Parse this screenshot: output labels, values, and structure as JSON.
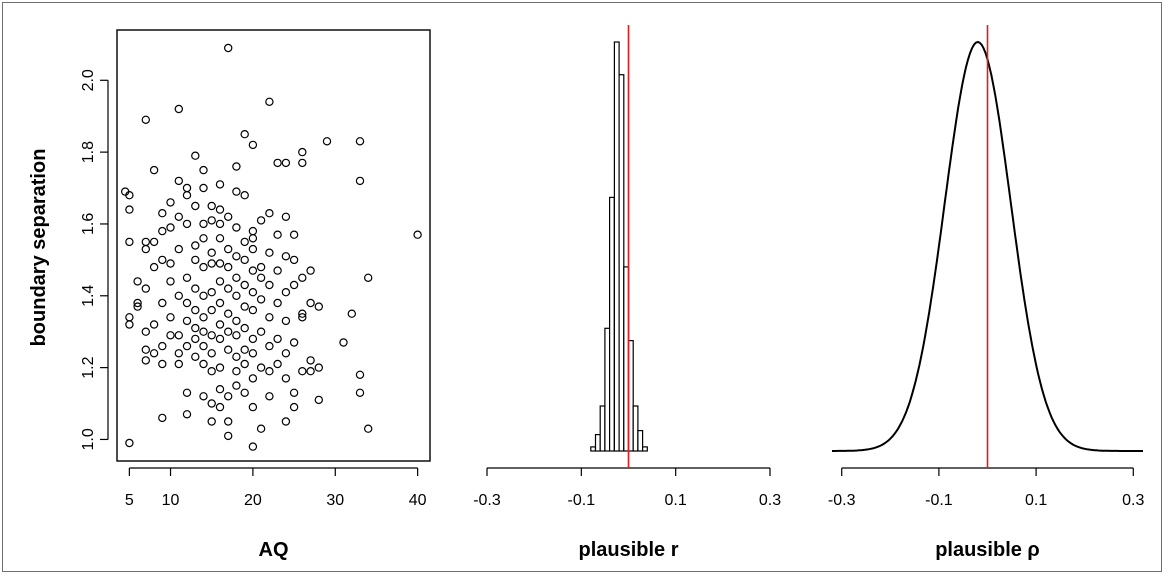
{
  "colors": {
    "ink": "#000000",
    "reference_line": "#e41a1c",
    "frame": "#6f6f6f"
  },
  "chart_data": [
    {
      "type": "scatter",
      "xlabel": "AQ",
      "ylabel": "boundary separation",
      "xlim": [
        3.5,
        41.5
      ],
      "ylim": [
        0.94,
        2.14
      ],
      "xticks": [
        5,
        10,
        20,
        30,
        40
      ],
      "yticks": [
        1.0,
        1.2,
        1.4,
        1.6,
        1.8,
        2.0
      ],
      "xtick_labels": [
        "5",
        "10",
        "20",
        "30",
        "40"
      ],
      "ytick_labels": [
        "1.0",
        "1.2",
        "1.4",
        "1.6",
        "1.8",
        "2.0"
      ],
      "marker": "open-circle",
      "points": [
        [
          17,
          2.09
        ],
        [
          11,
          1.92
        ],
        [
          22,
          1.94
        ],
        [
          7,
          1.89
        ],
        [
          19,
          1.85
        ],
        [
          29,
          1.83
        ],
        [
          33,
          1.83
        ],
        [
          20,
          1.82
        ],
        [
          13,
          1.79
        ],
        [
          26,
          1.8
        ],
        [
          8,
          1.75
        ],
        [
          14,
          1.75
        ],
        [
          18,
          1.76
        ],
        [
          23,
          1.77
        ],
        [
          24,
          1.77
        ],
        [
          26,
          1.77
        ],
        [
          11,
          1.72
        ],
        [
          12,
          1.7
        ],
        [
          14,
          1.7
        ],
        [
          16,
          1.71
        ],
        [
          33,
          1.72
        ],
        [
          4.5,
          1.69
        ],
        [
          5,
          1.68
        ],
        [
          18,
          1.69
        ],
        [
          19,
          1.68
        ],
        [
          12,
          1.68
        ],
        [
          10,
          1.66
        ],
        [
          13,
          1.65
        ],
        [
          15,
          1.65
        ],
        [
          5,
          1.64
        ],
        [
          9,
          1.63
        ],
        [
          16,
          1.64
        ],
        [
          17,
          1.62
        ],
        [
          22,
          1.63
        ],
        [
          11,
          1.62
        ],
        [
          15,
          1.61
        ],
        [
          16,
          1.6
        ],
        [
          21,
          1.61
        ],
        [
          24,
          1.62
        ],
        [
          10,
          1.59
        ],
        [
          12,
          1.6
        ],
        [
          14,
          1.6
        ],
        [
          18,
          1.59
        ],
        [
          20,
          1.58
        ],
        [
          9,
          1.58
        ],
        [
          23,
          1.57
        ],
        [
          25,
          1.57
        ],
        [
          40,
          1.57
        ],
        [
          5,
          1.55
        ],
        [
          7,
          1.55
        ],
        [
          8,
          1.55
        ],
        [
          14,
          1.56
        ],
        [
          16,
          1.56
        ],
        [
          19,
          1.55
        ],
        [
          20,
          1.56
        ],
        [
          13,
          1.54
        ],
        [
          17,
          1.53
        ],
        [
          20,
          1.53
        ],
        [
          22,
          1.52
        ],
        [
          7,
          1.53
        ],
        [
          11,
          1.53
        ],
        [
          15,
          1.52
        ],
        [
          18,
          1.51
        ],
        [
          24,
          1.51
        ],
        [
          9,
          1.5
        ],
        [
          10,
          1.49
        ],
        [
          13,
          1.5
        ],
        [
          16,
          1.49
        ],
        [
          19,
          1.5
        ],
        [
          21,
          1.48
        ],
        [
          25,
          1.5
        ],
        [
          8,
          1.48
        ],
        [
          14,
          1.48
        ],
        [
          15,
          1.49
        ],
        [
          17,
          1.48
        ],
        [
          20,
          1.47
        ],
        [
          23,
          1.47
        ],
        [
          27,
          1.47
        ],
        [
          12,
          1.45
        ],
        [
          18,
          1.45
        ],
        [
          21,
          1.45
        ],
        [
          26,
          1.45
        ],
        [
          34,
          1.45
        ],
        [
          6,
          1.44
        ],
        [
          10,
          1.44
        ],
        [
          16,
          1.44
        ],
        [
          19,
          1.43
        ],
        [
          22,
          1.43
        ],
        [
          25,
          1.43
        ],
        [
          7,
          1.42
        ],
        [
          13,
          1.42
        ],
        [
          15,
          1.41
        ],
        [
          17,
          1.42
        ],
        [
          20,
          1.41
        ],
        [
          24,
          1.41
        ],
        [
          11,
          1.4
        ],
        [
          14,
          1.4
        ],
        [
          18,
          1.4
        ],
        [
          21,
          1.39
        ],
        [
          6,
          1.38
        ],
        [
          9,
          1.38
        ],
        [
          12,
          1.38
        ],
        [
          16,
          1.38
        ],
        [
          19,
          1.37
        ],
        [
          23,
          1.38
        ],
        [
          27,
          1.38
        ],
        [
          28,
          1.37
        ],
        [
          6,
          1.37
        ],
        [
          13,
          1.36
        ],
        [
          15,
          1.36
        ],
        [
          17,
          1.35
        ],
        [
          20,
          1.36
        ],
        [
          26,
          1.35
        ],
        [
          32,
          1.35
        ],
        [
          5,
          1.34
        ],
        [
          10,
          1.34
        ],
        [
          14,
          1.34
        ],
        [
          18,
          1.33
        ],
        [
          22,
          1.34
        ],
        [
          24,
          1.33
        ],
        [
          26,
          1.34
        ],
        [
          5,
          1.32
        ],
        [
          8,
          1.32
        ],
        [
          12,
          1.33
        ],
        [
          13,
          1.31
        ],
        [
          16,
          1.32
        ],
        [
          19,
          1.31
        ],
        [
          21,
          1.3
        ],
        [
          14,
          1.3
        ],
        [
          15,
          1.29
        ],
        [
          17,
          1.3
        ],
        [
          18,
          1.29
        ],
        [
          7,
          1.3
        ],
        [
          11,
          1.29
        ],
        [
          10,
          1.29
        ],
        [
          13,
          1.28
        ],
        [
          16,
          1.28
        ],
        [
          20,
          1.28
        ],
        [
          23,
          1.28
        ],
        [
          25,
          1.27
        ],
        [
          31,
          1.27
        ],
        [
          9,
          1.26
        ],
        [
          12,
          1.26
        ],
        [
          14,
          1.26
        ],
        [
          17,
          1.25
        ],
        [
          19,
          1.25
        ],
        [
          22,
          1.26
        ],
        [
          7,
          1.25
        ],
        [
          8,
          1.24
        ],
        [
          11,
          1.24
        ],
        [
          13,
          1.23
        ],
        [
          15,
          1.24
        ],
        [
          18,
          1.23
        ],
        [
          20,
          1.24
        ],
        [
          24,
          1.24
        ],
        [
          27,
          1.22
        ],
        [
          7,
          1.22
        ],
        [
          9,
          1.21
        ],
        [
          11,
          1.21
        ],
        [
          14,
          1.21
        ],
        [
          16,
          1.2
        ],
        [
          19,
          1.21
        ],
        [
          21,
          1.2
        ],
        [
          23,
          1.21
        ],
        [
          28,
          1.2
        ],
        [
          15,
          1.19
        ],
        [
          18,
          1.19
        ],
        [
          22,
          1.19
        ],
        [
          26,
          1.19
        ],
        [
          27,
          1.19
        ],
        [
          33,
          1.18
        ],
        [
          20,
          1.17
        ],
        [
          24,
          1.17
        ],
        [
          18,
          1.15
        ],
        [
          16,
          1.14
        ],
        [
          12,
          1.13
        ],
        [
          19,
          1.13
        ],
        [
          25,
          1.13
        ],
        [
          33,
          1.13
        ],
        [
          14,
          1.12
        ],
        [
          17,
          1.12
        ],
        [
          22,
          1.12
        ],
        [
          28,
          1.11
        ],
        [
          15,
          1.1
        ],
        [
          20,
          1.09
        ],
        [
          25,
          1.09
        ],
        [
          12,
          1.07
        ],
        [
          16,
          1.09
        ],
        [
          9,
          1.06
        ],
        [
          24,
          1.05
        ],
        [
          15,
          1.05
        ],
        [
          17,
          1.05
        ],
        [
          21,
          1.03
        ],
        [
          34,
          1.03
        ],
        [
          17,
          1.01
        ],
        [
          5,
          0.99
        ],
        [
          20,
          0.98
        ]
      ]
    },
    {
      "type": "histogram",
      "xlabel": "plausible r",
      "xlim": [
        -0.3,
        0.3
      ],
      "xticks": [
        -0.3,
        -0.1,
        0.1,
        0.3
      ],
      "xtick_labels": [
        "-0.3",
        "-0.1",
        "0.1",
        "0.3"
      ],
      "reference_line": 0,
      "bin_width": 0.01,
      "bins": [
        {
          "left": -0.09,
          "height": 0.0
        },
        {
          "left": -0.08,
          "height": 0.01
        },
        {
          "left": -0.07,
          "height": 0.04
        },
        {
          "left": -0.06,
          "height": 0.11
        },
        {
          "left": -0.05,
          "height": 0.3
        },
        {
          "left": -0.04,
          "height": 0.62
        },
        {
          "left": -0.03,
          "height": 1.0
        },
        {
          "left": -0.02,
          "height": 0.92
        },
        {
          "left": -0.01,
          "height": 0.45
        },
        {
          "left": 0.0,
          "height": 0.27
        },
        {
          "left": 0.01,
          "height": 0.11
        },
        {
          "left": 0.02,
          "height": 0.05
        },
        {
          "left": 0.03,
          "height": 0.01
        },
        {
          "left": 0.04,
          "height": 0.0
        },
        {
          "left": 0.05,
          "height": 0.0
        }
      ]
    },
    {
      "type": "line",
      "xlabel": "plausible ρ",
      "xlim": [
        -0.32,
        0.32
      ],
      "xticks": [
        -0.3,
        -0.1,
        0.1,
        0.3
      ],
      "xtick_labels": [
        "-0.3",
        "-0.1",
        "0.1",
        "0.3"
      ],
      "reference_line": 0,
      "density": {
        "center": -0.02,
        "sd": 0.068,
        "support": [
          -0.32,
          0.32
        ]
      }
    }
  ]
}
